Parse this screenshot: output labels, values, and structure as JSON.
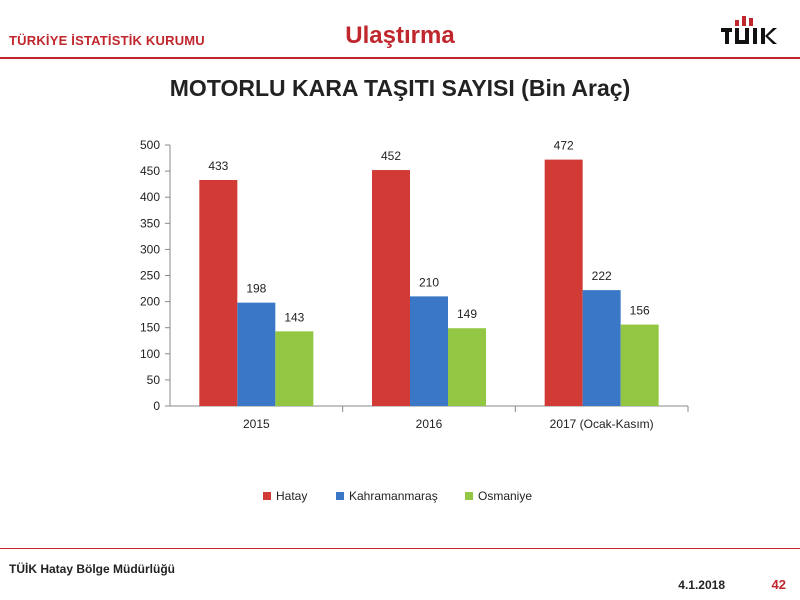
{
  "header": {
    "org": "TÜRKİYE İSTATİSTİK KURUMU",
    "section": "Ulaştırma",
    "logo_text": "TÜİK"
  },
  "title": "MOTORLU KARA TAŞITI SAYISI (Bin Araç)",
  "footer": {
    "office": "TÜİK Hatay Bölge Müdürlüğü",
    "date": "4.1.2018",
    "page": "42"
  },
  "colors": {
    "brand": "#c0272d",
    "hatay": "#d13a35",
    "kahramanmaras": "#3a78c7",
    "osmaniye": "#93c643"
  },
  "chart_data": {
    "type": "bar",
    "categories": [
      "2015",
      "2016",
      "2017 (Ocak-Kasım)"
    ],
    "series": [
      {
        "name": "Hatay",
        "values": [
          433,
          452,
          472
        ],
        "color": "#d13a35"
      },
      {
        "name": "Kahramanmaraş",
        "values": [
          198,
          210,
          222
        ],
        "color": "#3a78c7"
      },
      {
        "name": "Osmaniye",
        "values": [
          143,
          149,
          156
        ],
        "color": "#93c643"
      }
    ],
    "ylim": [
      0,
      500
    ],
    "yticks": [
      0,
      50,
      100,
      150,
      200,
      250,
      300,
      350,
      400,
      450,
      500
    ],
    "grid": false,
    "legend": "bottom"
  }
}
